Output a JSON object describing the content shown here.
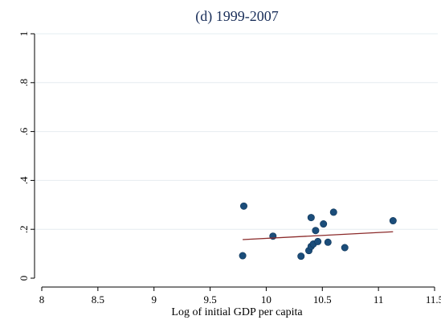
{
  "chart_data": {
    "type": "scatter",
    "title": "(d) 1999-2007",
    "xlabel": "Log of initial GDP per capita",
    "ylabel": "",
    "xlim": [
      8,
      11.5
    ],
    "ylim": [
      0,
      1
    ],
    "x_ticks": [
      {
        "value": 8,
        "label": "8"
      },
      {
        "value": 8.5,
        "label": "8.5"
      },
      {
        "value": 9,
        "label": "9"
      },
      {
        "value": 9.5,
        "label": "9.5"
      },
      {
        "value": 10,
        "label": "10"
      },
      {
        "value": 10.5,
        "label": "10.5"
      },
      {
        "value": 11,
        "label": "11"
      },
      {
        "value": 11.5,
        "label": "11.5"
      }
    ],
    "y_ticks": [
      {
        "value": 0,
        "label": "0"
      },
      {
        "value": 0.2,
        "label": ".2"
      },
      {
        "value": 0.4,
        "label": ".4"
      },
      {
        "value": 0.6,
        "label": ".6"
      },
      {
        "value": 0.8,
        "label": ".8"
      },
      {
        "value": 1,
        "label": "1"
      }
    ],
    "grid": true,
    "series": [
      {
        "type": "scatter",
        "color": "#1b4d7a",
        "points": [
          {
            "x": 9.8,
            "y": 0.295
          },
          {
            "x": 9.79,
            "y": 0.092
          },
          {
            "x": 10.06,
            "y": 0.172
          },
          {
            "x": 10.31,
            "y": 0.09
          },
          {
            "x": 10.38,
            "y": 0.113
          },
          {
            "x": 10.4,
            "y": 0.248
          },
          {
            "x": 10.4,
            "y": 0.13
          },
          {
            "x": 10.42,
            "y": 0.14
          },
          {
            "x": 10.44,
            "y": 0.195
          },
          {
            "x": 10.46,
            "y": 0.15
          },
          {
            "x": 10.51,
            "y": 0.222
          },
          {
            "x": 10.55,
            "y": 0.147
          },
          {
            "x": 10.6,
            "y": 0.27
          },
          {
            "x": 10.7,
            "y": 0.125
          },
          {
            "x": 11.13,
            "y": 0.235
          }
        ]
      },
      {
        "type": "line",
        "color": "#8b2a2a",
        "points": [
          {
            "x": 9.79,
            "y": 0.158
          },
          {
            "x": 11.13,
            "y": 0.19
          }
        ]
      }
    ]
  }
}
